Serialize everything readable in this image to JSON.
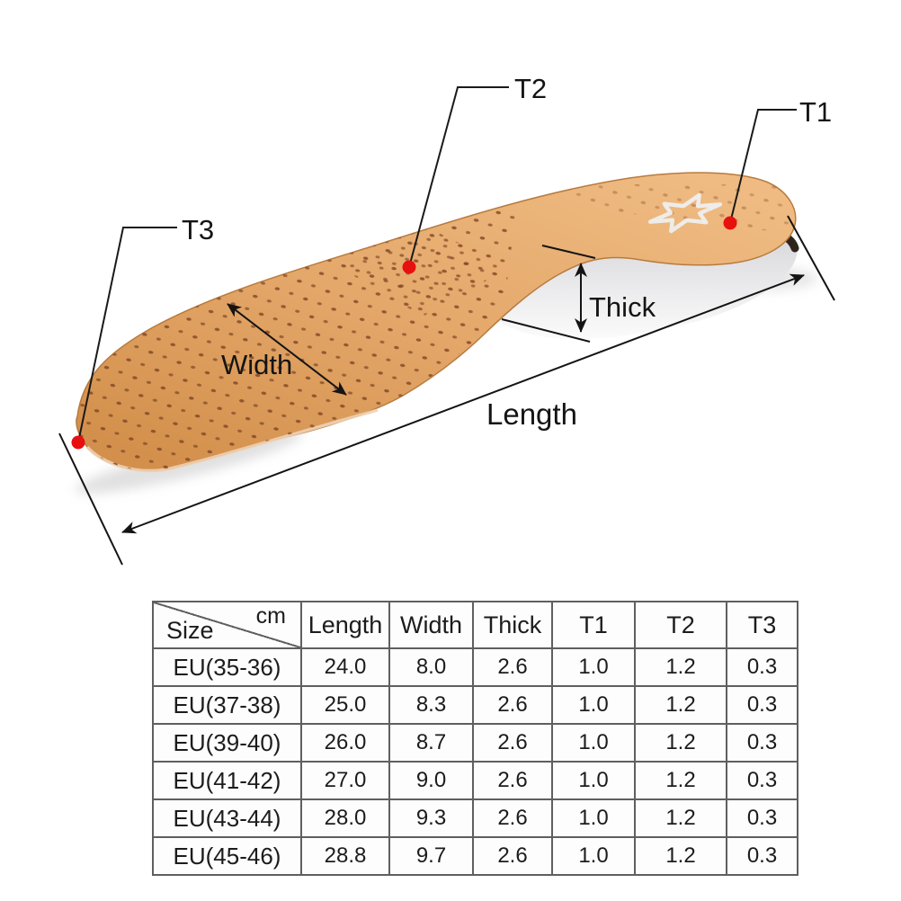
{
  "diagram": {
    "annotations": {
      "t1": "T1",
      "t2": "T2",
      "t3": "T3",
      "thick": "Thick",
      "width": "Width",
      "length": "Length"
    },
    "marker_color": "#e8100e",
    "leather_color": "#e2a365",
    "line_color": "#1a1a1a",
    "logo": "star-logo"
  },
  "table": {
    "corner": {
      "unit_label": "cm",
      "size_label": "Size"
    },
    "columns": [
      "Length",
      "Width",
      "Thick",
      "T1",
      "T2",
      "T3"
    ],
    "rows": [
      {
        "size": "EU(35-36)",
        "values": [
          "24.0",
          "8.0",
          "2.6",
          "1.0",
          "1.2",
          "0.3"
        ]
      },
      {
        "size": "EU(37-38)",
        "values": [
          "25.0",
          "8.3",
          "2.6",
          "1.0",
          "1.2",
          "0.3"
        ]
      },
      {
        "size": "EU(39-40)",
        "values": [
          "26.0",
          "8.7",
          "2.6",
          "1.0",
          "1.2",
          "0.3"
        ]
      },
      {
        "size": "EU(41-42)",
        "values": [
          "27.0",
          "9.0",
          "2.6",
          "1.0",
          "1.2",
          "0.3"
        ]
      },
      {
        "size": "EU(43-44)",
        "values": [
          "28.0",
          "9.3",
          "2.6",
          "1.0",
          "1.2",
          "0.3"
        ]
      },
      {
        "size": "EU(45-46)",
        "values": [
          "28.8",
          "9.7",
          "2.6",
          "1.0",
          "1.2",
          "0.3"
        ]
      }
    ]
  }
}
